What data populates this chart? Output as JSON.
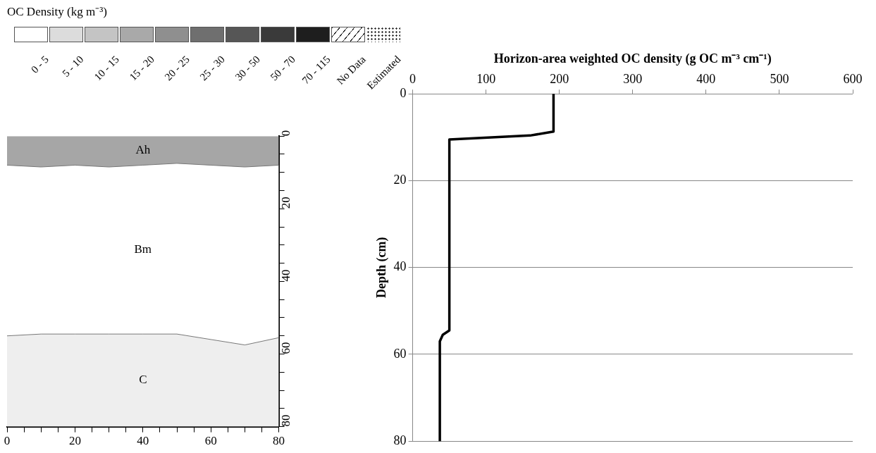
{
  "chart_data": [
    {
      "type": "other",
      "title": "OC Density (kg m⁻³)",
      "categories": [
        "0 - 5",
        "5 - 10",
        "10 - 15",
        "15 - 20",
        "20 - 25",
        "25 - 30",
        "30 - 50",
        "50 - 70",
        "70 - 115",
        "No Data",
        "Estimated"
      ],
      "colors": [
        "#ffffff",
        "#dcdcdc",
        "#c4c4c4",
        "#a9a9a9",
        "#8f8f8f",
        "#6f6f6f",
        "#565656",
        "#3a3a3a",
        "#1e1e1e",
        null,
        null
      ]
    },
    {
      "type": "area",
      "stacked": true,
      "x": [
        0,
        10,
        20,
        30,
        40,
        50,
        60,
        70,
        80
      ],
      "series": [
        {
          "name": "Ah",
          "color": "#a6a6a6",
          "values": [
            8,
            8.5,
            8,
            8.5,
            8,
            7.5,
            8,
            8.5,
            8
          ]
        },
        {
          "name": "Bm",
          "color": "#ffffff",
          "values": [
            47,
            46,
            46.5,
            46,
            46.5,
            47,
            48,
            49,
            47.5
          ]
        },
        {
          "name": "C",
          "color": "#eeeeee",
          "values": [
            25,
            25.5,
            25.5,
            25.5,
            25.5,
            25.5,
            24,
            22.5,
            24.5
          ]
        }
      ],
      "xlim": [
        0,
        80
      ],
      "xticks": [
        0,
        {
          "value": 5,
          "label": null
        },
        {
          "value": 10,
          "label": null
        },
        {
          "value": 15,
          "label": null
        },
        20,
        {
          "value": 25,
          "label": null
        },
        {
          "value": 30,
          "label": null
        },
        {
          "value": 35,
          "label": null
        },
        40,
        {
          "value": 45,
          "label": null
        },
        {
          "value": 50,
          "label": null
        },
        {
          "value": 55,
          "label": null
        },
        60,
        {
          "value": 65,
          "label": null
        },
        {
          "value": 70,
          "label": null
        },
        {
          "value": 75,
          "label": null
        },
        80
      ],
      "ylim": [
        80,
        0
      ],
      "yticks": [
        0,
        {
          "value": 5,
          "label": null
        },
        {
          "value": 10,
          "label": null
        },
        {
          "value": 15,
          "label": null
        },
        20,
        {
          "value": 25,
          "label": null
        },
        {
          "value": 30,
          "label": null
        },
        {
          "value": 35,
          "label": null
        },
        40,
        {
          "value": 45,
          "label": null
        },
        {
          "value": 50,
          "label": null
        },
        {
          "value": 55,
          "label": null
        },
        60,
        {
          "value": 65,
          "label": null
        },
        {
          "value": 70,
          "label": null
        },
        {
          "value": 75,
          "label": null
        },
        80
      ],
      "grid": false,
      "legend": false
    },
    {
      "type": "line",
      "xlabel": "Horizon-area weighted OC density (g OC m⁻³ cm⁻¹)",
      "ylabel": "Depth (cm)",
      "series": [
        {
          "color": "#000000",
          "x": [
            192,
            192,
            160,
            50,
            50,
            41,
            37,
            37
          ],
          "values": [
            0,
            8.7,
            9.6,
            10.5,
            54.5,
            55.5,
            57,
            80
          ]
        }
      ],
      "xlim": [
        0,
        600
      ],
      "xticks": [
        0,
        100,
        200,
        300,
        400,
        500,
        600
      ],
      "ylim": [
        80,
        0
      ],
      "yticks": [
        0,
        20,
        40,
        60,
        80
      ],
      "grid": "y",
      "legend": false,
      "marker": "none",
      "line_style": "solid"
    }
  ]
}
